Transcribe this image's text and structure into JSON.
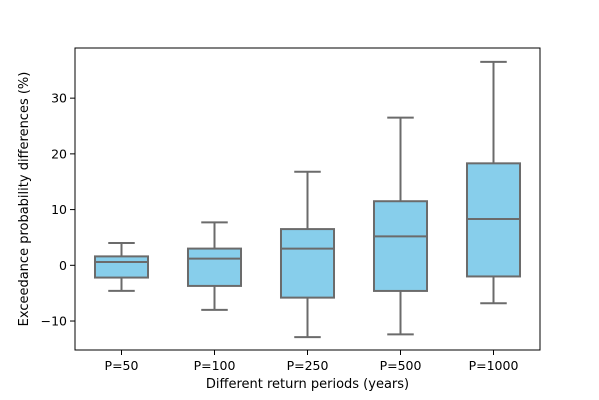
{
  "chart_data": {
    "type": "box",
    "title": "",
    "xlabel": "Different return periods (years)",
    "ylabel": "Exceedance probability differences (%)",
    "categories": [
      "P=50",
      "P=100",
      "P=250",
      "P=500",
      "P=1000"
    ],
    "boxes": [
      {
        "whisker_low": -4.6,
        "q1": -2.2,
        "median": 0.6,
        "q3": 1.6,
        "whisker_high": 4.0
      },
      {
        "whisker_low": -8.0,
        "q1": -3.7,
        "median": 1.2,
        "q3": 3.0,
        "whisker_high": 7.7
      },
      {
        "whisker_low": -12.9,
        "q1": -5.8,
        "median": 3.0,
        "q3": 6.5,
        "whisker_high": 16.8
      },
      {
        "whisker_low": -12.4,
        "q1": -4.6,
        "median": 5.2,
        "q3": 11.5,
        "whisker_high": 26.5
      },
      {
        "whisker_low": -6.8,
        "q1": -2.0,
        "median": 8.3,
        "q3": 18.3,
        "whisker_high": 36.5
      }
    ],
    "yticks": [
      -10,
      0,
      10,
      20,
      30
    ],
    "ylim": [
      -15.2,
      39.0
    ],
    "grid": false,
    "colors": {
      "box_fill": "#87CEEB",
      "box_edge": "#6b6b6b",
      "axis": "#000000"
    }
  }
}
